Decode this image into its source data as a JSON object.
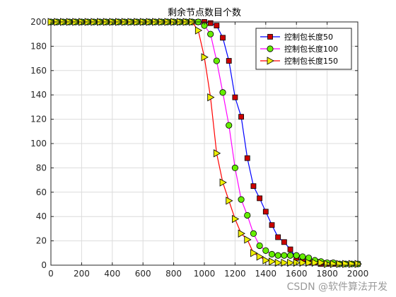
{
  "watermark": "CSDN @软件算法开发",
  "chart_data": {
    "type": "line",
    "title": "剩余节点数目个数",
    "xlabel": "",
    "ylabel": "",
    "xlim": [
      0,
      2000
    ],
    "ylim": [
      0,
      200
    ],
    "xticks": [
      0,
      200,
      400,
      600,
      800,
      1000,
      1200,
      1400,
      1600,
      1800,
      2000
    ],
    "yticks": [
      0,
      20,
      40,
      60,
      80,
      100,
      120,
      140,
      160,
      180,
      200
    ],
    "grid": true,
    "legend_position": "top-right",
    "series": [
      {
        "name": "控制包长度50",
        "color": "#0000ff",
        "marker": "square",
        "marker_fill": "#cc0000",
        "x": [
          0,
          40,
          80,
          120,
          160,
          200,
          240,
          280,
          320,
          360,
          400,
          440,
          480,
          520,
          560,
          600,
          640,
          680,
          720,
          760,
          800,
          840,
          880,
          920,
          960,
          1000,
          1040,
          1080,
          1120,
          1160,
          1200,
          1240,
          1280,
          1320,
          1360,
          1400,
          1440,
          1480,
          1520,
          1560,
          1600,
          1640,
          1680,
          1720,
          1760,
          1800,
          1840,
          1880,
          1920,
          1960,
          2000
        ],
        "y": [
          200,
          200,
          200,
          200,
          200,
          200,
          200,
          200,
          200,
          200,
          200,
          200,
          200,
          200,
          200,
          200,
          200,
          200,
          200,
          200,
          200,
          200,
          200,
          200,
          200,
          200,
          199,
          197,
          187,
          168,
          138,
          122,
          88,
          65,
          55,
          44,
          33,
          23,
          19,
          13,
          6,
          4,
          2,
          2,
          1,
          1,
          1,
          1,
          1,
          1,
          1
        ]
      },
      {
        "name": "控制包长度100",
        "color": "#ff00ff",
        "marker": "circle",
        "marker_fill": "#66ee00",
        "x": [
          0,
          40,
          80,
          120,
          160,
          200,
          240,
          280,
          320,
          360,
          400,
          440,
          480,
          520,
          560,
          600,
          640,
          680,
          720,
          760,
          800,
          840,
          880,
          920,
          960,
          1000,
          1040,
          1080,
          1120,
          1160,
          1200,
          1240,
          1280,
          1320,
          1360,
          1400,
          1440,
          1480,
          1520,
          1560,
          1600,
          1640,
          1680,
          1720,
          1760,
          1800,
          1840,
          1880,
          1920,
          1960,
          2000
        ],
        "y": [
          200,
          200,
          200,
          200,
          200,
          200,
          200,
          200,
          200,
          200,
          200,
          200,
          200,
          200,
          200,
          200,
          200,
          200,
          200,
          200,
          200,
          200,
          200,
          200,
          200,
          197,
          190,
          168,
          142,
          115,
          80,
          54,
          41,
          26,
          16,
          12,
          9,
          8,
          8,
          8,
          8,
          7,
          6,
          4,
          3,
          2,
          2,
          1,
          1,
          1,
          1
        ]
      },
      {
        "name": "控制包长度150",
        "color": "#ff0000",
        "marker": "triangle-right",
        "marker_fill": "#eeee00",
        "x": [
          0,
          40,
          80,
          120,
          160,
          200,
          240,
          280,
          320,
          360,
          400,
          440,
          480,
          520,
          560,
          600,
          640,
          680,
          720,
          760,
          800,
          840,
          880,
          920,
          960,
          1000,
          1040,
          1080,
          1120,
          1160,
          1200,
          1240,
          1280,
          1320,
          1360,
          1400,
          1440,
          1480,
          1520,
          1560,
          1600,
          1640,
          1680,
          1720,
          1760,
          1800,
          1840,
          1880,
          1920,
          1960,
          2000
        ],
        "y": [
          200,
          200,
          200,
          200,
          200,
          200,
          200,
          200,
          200,
          200,
          200,
          200,
          200,
          200,
          200,
          200,
          200,
          200,
          200,
          200,
          200,
          200,
          200,
          200,
          193,
          171,
          138,
          92,
          68,
          53,
          38,
          26,
          21,
          10,
          7,
          4,
          3,
          2,
          2,
          2,
          2,
          2,
          2,
          2,
          2,
          1,
          1,
          1,
          1,
          1,
          1
        ]
      }
    ]
  }
}
